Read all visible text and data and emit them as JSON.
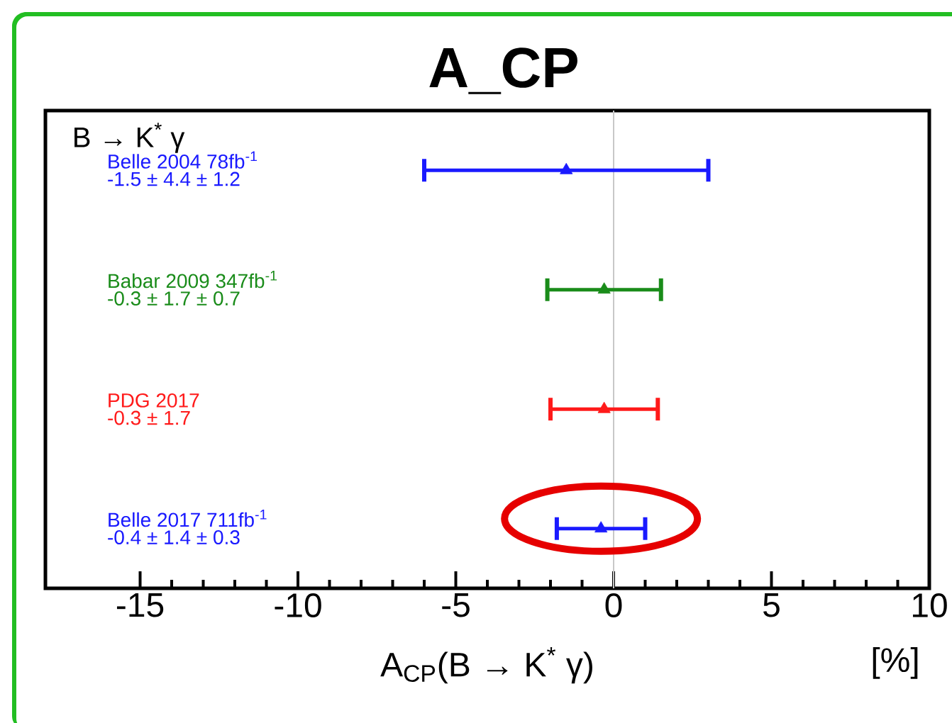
{
  "chart_data": {
    "type": "scatter",
    "orientation": "horizontal",
    "title": "A_CP",
    "xlabel": "A$_{CP}$(B → K$^{*}$ γ)",
    "categories": [
      null,
      null,
      null,
      null
    ],
    "values": [
      -1.5,
      -0.3,
      -0.3,
      -0.4
    ],
    "errors": [
      4.5,
      1.8,
      1.7,
      1.4
    ],
    "colors": [
      "#1a1aff",
      "#1a8c1a",
      "#ff1a1a",
      "#1a1aff"
    ],
    "marker": "triangle",
    "xlim": [
      -18,
      10
    ],
    "xticks": [
      -15,
      -10,
      -5,
      0,
      5,
      10
    ],
    "tick_labels": "x",
    "ref_lines": [
      {
        "axis": "x",
        "value": 0,
        "color": "#c8c8c8"
      }
    ],
    "annotations": [
      "B → K$^{*}$ γ",
      "Belle 2004  78fb$^{-1}$",
      "-1.5 ± 4.4 ± 1.2",
      "Babar 2009  347fb$^{-1}$",
      "-0.3 ± 1.7 ± 0.7",
      "PDG 2017",
      "-0.3 ± 1.7",
      "Belle 2017  711fb$^{-1}$",
      "-0.4 ± 1.4 ± 0.3",
      "[%]"
    ]
  }
}
